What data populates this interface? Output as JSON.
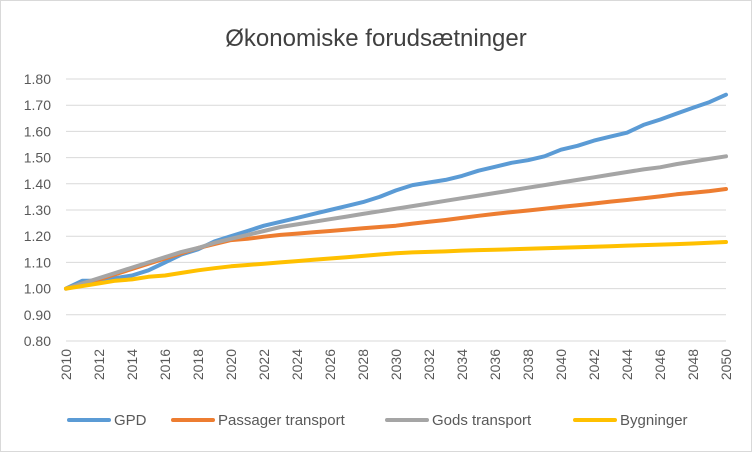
{
  "chart_data": {
    "type": "line",
    "title": "Økonomiske forudsætninger",
    "xlabel": "",
    "ylabel": "",
    "ylim": [
      0.8,
      1.8
    ],
    "yticks": [
      "0.80",
      "0.90",
      "1.00",
      "1.10",
      "1.20",
      "1.30",
      "1.40",
      "1.50",
      "1.60",
      "1.70",
      "1.80"
    ],
    "xticks": [
      "2010",
      "2012",
      "2014",
      "2016",
      "2018",
      "2020",
      "2022",
      "2024",
      "2026",
      "2028",
      "2030",
      "2032",
      "2034",
      "2036",
      "2038",
      "2040",
      "2042",
      "2044",
      "2046",
      "2048",
      "2050"
    ],
    "x": [
      2010,
      2011,
      2012,
      2013,
      2014,
      2015,
      2016,
      2017,
      2018,
      2019,
      2020,
      2021,
      2022,
      2023,
      2024,
      2025,
      2026,
      2027,
      2028,
      2029,
      2030,
      2031,
      2032,
      2033,
      2034,
      2035,
      2036,
      2037,
      2038,
      2039,
      2040,
      2041,
      2042,
      2043,
      2044,
      2045,
      2046,
      2047,
      2048,
      2049,
      2050
    ],
    "grid": "horizontal",
    "legend": "bottom",
    "series": [
      {
        "name": "GPD",
        "color": "#5b9bd5",
        "values": [
          1.0,
          1.03,
          1.03,
          1.04,
          1.05,
          1.07,
          1.1,
          1.13,
          1.15,
          1.18,
          1.2,
          1.22,
          1.24,
          1.255,
          1.27,
          1.285,
          1.3,
          1.315,
          1.33,
          1.35,
          1.375,
          1.395,
          1.405,
          1.415,
          1.43,
          1.45,
          1.465,
          1.48,
          1.49,
          1.505,
          1.53,
          1.545,
          1.565,
          1.58,
          1.595,
          1.625,
          1.645,
          1.668,
          1.69,
          1.712,
          1.74
        ]
      },
      {
        "name": "Passager transport",
        "color": "#ed7d31",
        "values": [
          1.0,
          1.02,
          1.035,
          1.055,
          1.075,
          1.095,
          1.115,
          1.135,
          1.155,
          1.17,
          1.185,
          1.19,
          1.198,
          1.205,
          1.21,
          1.215,
          1.22,
          1.225,
          1.23,
          1.235,
          1.24,
          1.248,
          1.255,
          1.262,
          1.27,
          1.278,
          1.285,
          1.292,
          1.298,
          1.305,
          1.312,
          1.318,
          1.325,
          1.332,
          1.338,
          1.345,
          1.352,
          1.36,
          1.366,
          1.372,
          1.38
        ]
      },
      {
        "name": "Gods transport",
        "color": "#a5a5a5",
        "values": [
          1.0,
          1.02,
          1.04,
          1.06,
          1.08,
          1.1,
          1.12,
          1.14,
          1.155,
          1.175,
          1.19,
          1.205,
          1.22,
          1.235,
          1.245,
          1.255,
          1.265,
          1.275,
          1.285,
          1.295,
          1.305,
          1.315,
          1.325,
          1.335,
          1.345,
          1.355,
          1.365,
          1.375,
          1.385,
          1.395,
          1.405,
          1.415,
          1.425,
          1.435,
          1.445,
          1.455,
          1.463,
          1.475,
          1.485,
          1.495,
          1.505
        ]
      },
      {
        "name": "Bygninger",
        "color": "#ffc000",
        "values": [
          1.0,
          1.01,
          1.02,
          1.03,
          1.035,
          1.045,
          1.05,
          1.06,
          1.07,
          1.078,
          1.085,
          1.09,
          1.095,
          1.1,
          1.105,
          1.11,
          1.115,
          1.12,
          1.125,
          1.13,
          1.135,
          1.138,
          1.14,
          1.142,
          1.145,
          1.147,
          1.148,
          1.15,
          1.152,
          1.154,
          1.156,
          1.158,
          1.16,
          1.162,
          1.164,
          1.166,
          1.168,
          1.17,
          1.172,
          1.175,
          1.178
        ]
      }
    ]
  }
}
